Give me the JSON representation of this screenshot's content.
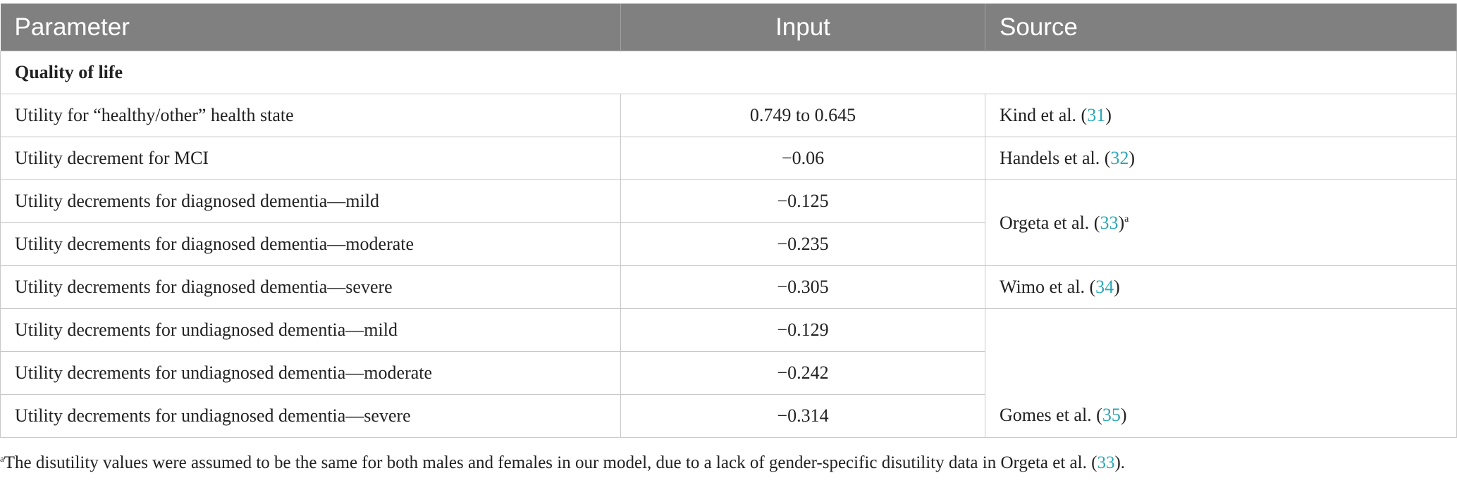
{
  "table": {
    "header": [
      "Parameter",
      "Input",
      "Source"
    ],
    "section": "Quality of life",
    "rows": [
      {
        "parameter": "Utility for “healthy/other” health state",
        "input": "0.749 to 0.645",
        "source": {
          "pre": "Kind et al. (",
          "ref": "31",
          "post": ")"
        }
      },
      {
        "parameter": "Utility decrement for MCI",
        "input": "−0.06",
        "source": {
          "pre": "Handels et al. (",
          "ref": "32",
          "post": ")"
        }
      },
      {
        "parameter": "Utility decrements for diagnosed dementia—mild",
        "input": "−0.125",
        "source": {
          "pre": "Orgeta et al. (",
          "ref": "33",
          "post": ")",
          "sup": "a"
        }
      },
      {
        "parameter": "Utility decrements for diagnosed dementia—moderate",
        "input": "−0.235"
      },
      {
        "parameter": "Utility decrements for diagnosed dementia—severe",
        "input": "−0.305",
        "source": {
          "pre": "Wimo et al. (",
          "ref": "34",
          "post": ")"
        }
      },
      {
        "parameter": "Utility decrements for undiagnosed dementia—mild",
        "input": "−0.129",
        "source": {
          "pre": "Gomes et al. (",
          "ref": "35",
          "post": ")"
        }
      },
      {
        "parameter": "Utility decrements for undiagnosed dementia—moderate",
        "input": "−0.242"
      },
      {
        "parameter": "Utility decrements for undiagnosed dementia—severe",
        "input": "−0.314"
      }
    ]
  },
  "footnote": {
    "sup": "a",
    "text": "The disutility values were assumed to be the same for both males and females in our model, due to a lack of gender-specific disutility data in Orgeta et al. (",
    "ref": "33",
    "post": ")."
  }
}
